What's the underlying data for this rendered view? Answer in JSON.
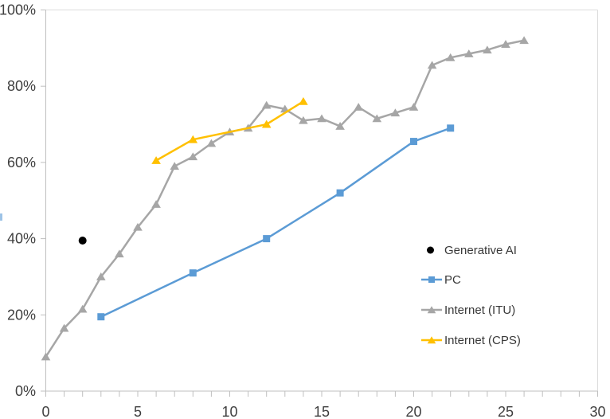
{
  "chart_data": {
    "type": "line",
    "title": "",
    "xlabel": "",
    "ylabel": "",
    "xlim": [
      0,
      30
    ],
    "ylim": [
      0,
      100
    ],
    "x_ticks": [
      0,
      5,
      10,
      15,
      20,
      25,
      30
    ],
    "x_minor_tick_step": 1,
    "y_ticks": [
      0,
      20,
      40,
      60,
      80,
      100
    ],
    "y_tick_suffix": "%",
    "grid": false,
    "legend_position": "inside-right",
    "series": [
      {
        "name": "Generative AI",
        "color": "#000000",
        "marker": "circle",
        "line": false,
        "points": [
          [
            2,
            39.5
          ]
        ]
      },
      {
        "name": "PC",
        "color": "#5B9BD5",
        "marker": "square",
        "line": true,
        "points": [
          [
            3,
            19.5
          ],
          [
            8,
            31
          ],
          [
            12,
            40
          ],
          [
            16,
            52
          ],
          [
            20,
            65.5
          ],
          [
            22,
            69
          ]
        ]
      },
      {
        "name": "Internet (ITU)",
        "color": "#A6A6A6",
        "marker": "triangle",
        "line": true,
        "points": [
          [
            0,
            9
          ],
          [
            1,
            16.5
          ],
          [
            2,
            21.5
          ],
          [
            3,
            30
          ],
          [
            4,
            36
          ],
          [
            5,
            43
          ],
          [
            6,
            49
          ],
          [
            7,
            59
          ],
          [
            8,
            61.5
          ],
          [
            9,
            65
          ],
          [
            10,
            68
          ],
          [
            11,
            69
          ],
          [
            12,
            75
          ],
          [
            13,
            74
          ],
          [
            14,
            71
          ],
          [
            15,
            71.5
          ],
          [
            16,
            69.5
          ],
          [
            17,
            74.5
          ],
          [
            18,
            71.5
          ],
          [
            19,
            73
          ],
          [
            20,
            74.5
          ],
          [
            21,
            85.5
          ],
          [
            22,
            87.5
          ],
          [
            23,
            88.5
          ],
          [
            24,
            89.5
          ],
          [
            25,
            91
          ],
          [
            26,
            92
          ]
        ]
      },
      {
        "name": "Internet (CPS)",
        "color": "#FFC000",
        "marker": "triangle",
        "line": true,
        "points": [
          [
            6,
            60.5
          ],
          [
            8,
            66
          ],
          [
            12,
            70
          ],
          [
            14,
            76
          ]
        ]
      }
    ],
    "style": {
      "axis_color": "#BFBFBF",
      "border_color": "#DCDCDC",
      "tick_label_color": "#3F3F3F",
      "legend_label_color": "#383838",
      "background": "#FFFFFF"
    }
  }
}
